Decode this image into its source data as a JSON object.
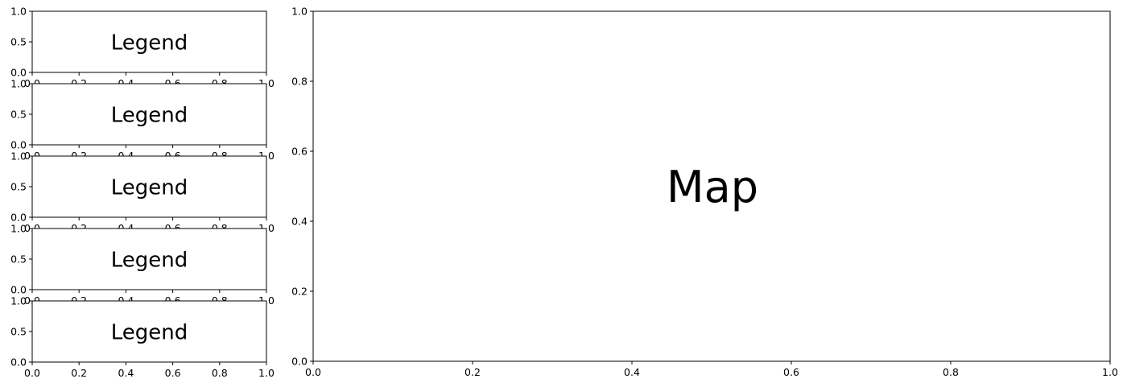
{
  "chart_data": [
    {
      "type": "empty",
      "panel": "legend-1",
      "label": "Legend",
      "xlim": [
        0,
        1
      ],
      "ylim": [
        0,
        1
      ],
      "xticks": [
        "0.0",
        "0.2",
        "0.4",
        "0.6",
        "0.8",
        "1.0"
      ],
      "yticks": [
        "0.0",
        "0.5",
        "1.0"
      ]
    },
    {
      "type": "empty",
      "panel": "legend-2",
      "label": "Legend",
      "xlim": [
        0,
        1
      ],
      "ylim": [
        0,
        1
      ],
      "xticks": [
        "0.0",
        "0.2",
        "0.4",
        "0.6",
        "0.8",
        "1.0"
      ],
      "yticks": [
        "0.0",
        "0.5",
        "1.0"
      ]
    },
    {
      "type": "empty",
      "panel": "legend-3",
      "label": "Legend",
      "xlim": [
        0,
        1
      ],
      "ylim": [
        0,
        1
      ],
      "xticks": [
        "0.0",
        "0.2",
        "0.4",
        "0.6",
        "0.8",
        "1.0"
      ],
      "yticks": [
        "0.0",
        "0.5",
        "1.0"
      ]
    },
    {
      "type": "empty",
      "panel": "legend-4",
      "label": "Legend",
      "xlim": [
        0,
        1
      ],
      "ylim": [
        0,
        1
      ],
      "xticks": [
        "0.0",
        "0.2",
        "0.4",
        "0.6",
        "0.8",
        "1.0"
      ],
      "yticks": [
        "0.0",
        "0.5",
        "1.0"
      ]
    },
    {
      "type": "empty",
      "panel": "legend-5",
      "label": "Legend",
      "xlim": [
        0,
        1
      ],
      "ylim": [
        0,
        1
      ],
      "xticks": [
        "0.0",
        "0.2",
        "0.4",
        "0.6",
        "0.8",
        "1.0"
      ],
      "yticks": [
        "0.0",
        "0.5",
        "1.0"
      ]
    },
    {
      "type": "empty",
      "panel": "map",
      "label": "Map",
      "xlim": [
        0,
        1
      ],
      "ylim": [
        0,
        1
      ],
      "xticks": [
        "0.0",
        "0.2",
        "0.4",
        "0.6",
        "0.8",
        "1.0"
      ],
      "yticks": [
        "0.0",
        "0.2",
        "0.4",
        "0.6",
        "0.8",
        "1.0"
      ]
    }
  ],
  "colors": {
    "axis": "#000000",
    "background": "#ffffff"
  }
}
